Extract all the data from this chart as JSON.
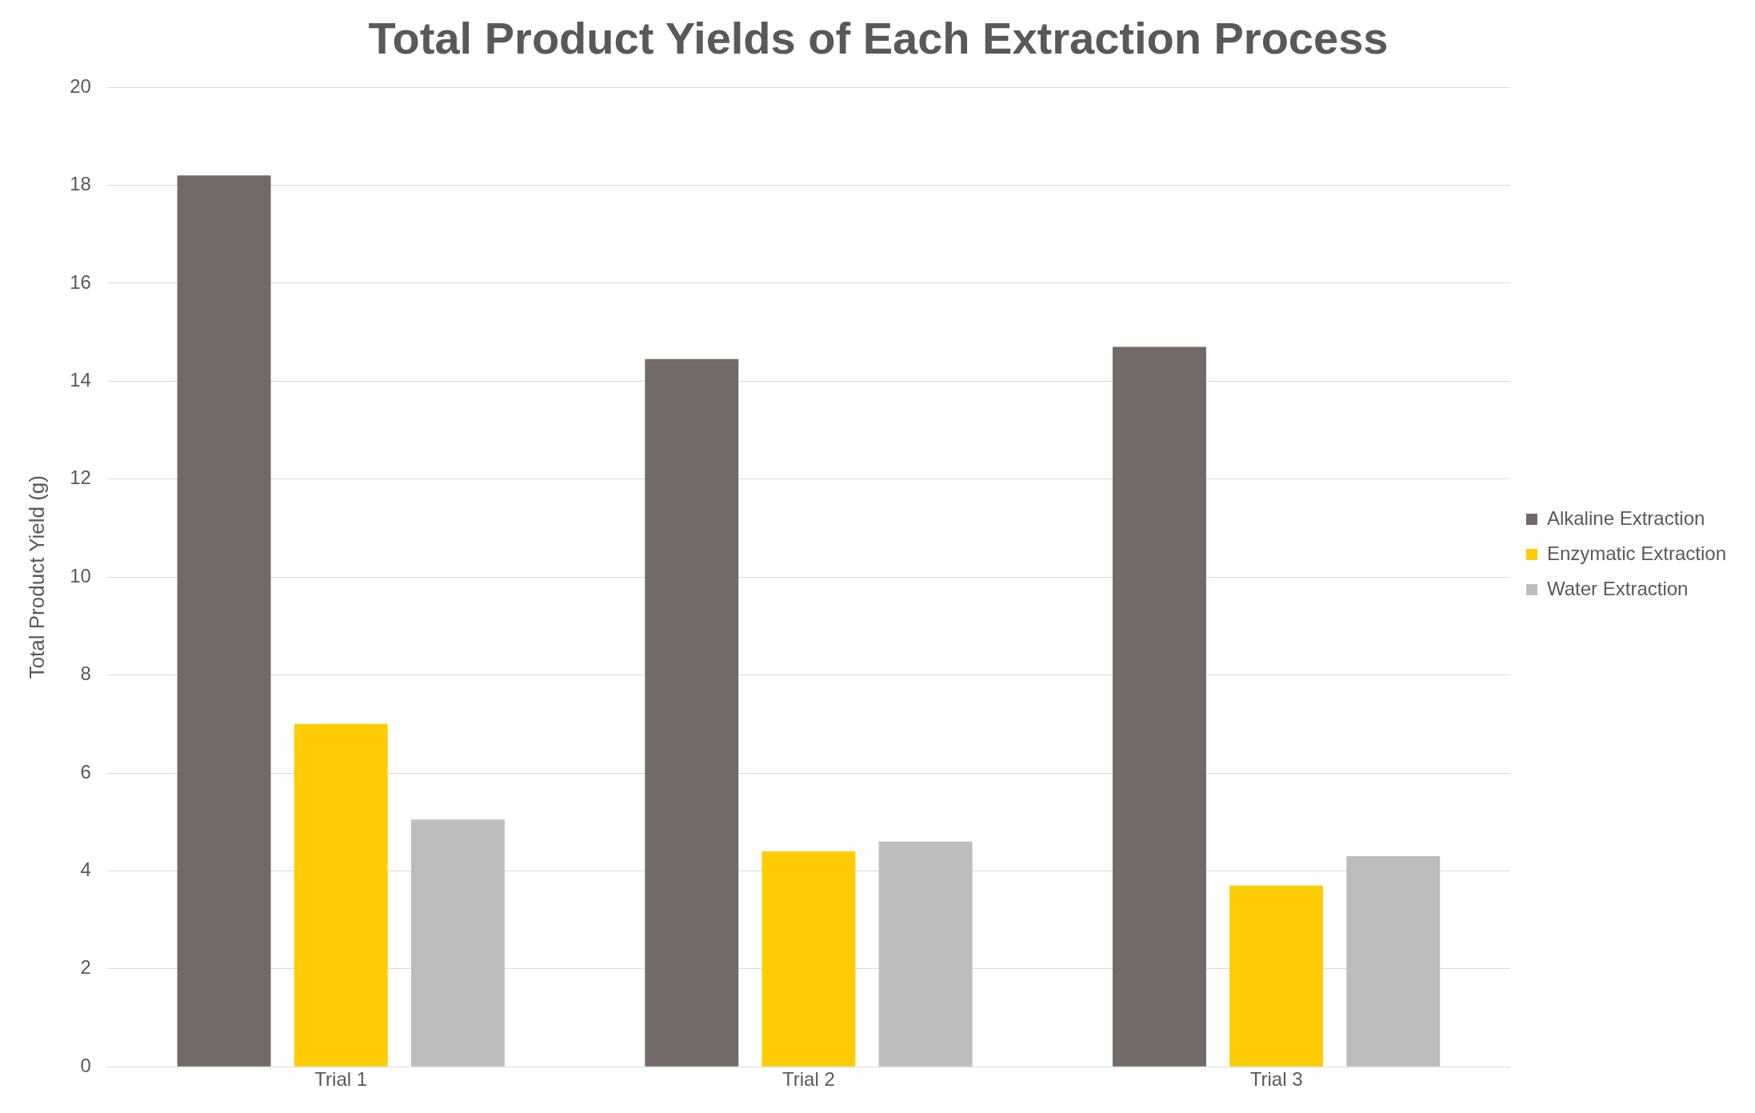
{
  "chart_data": {
    "type": "bar",
    "title": "Total Product Yields of Each Extraction Process",
    "ylabel": "Total Product Yield (g)",
    "categories": [
      "Trial 1",
      "Trial 2",
      "Trial 3"
    ],
    "series": [
      {
        "name": "Alkaline Extraction",
        "color": "#716a69",
        "values": [
          18.2,
          14.45,
          14.7
        ]
      },
      {
        "name": "Enzymatic Extraction",
        "color": "#ffcc05",
        "values": [
          7.0,
          4.4,
          3.7
        ]
      },
      {
        "name": "Water Extraction",
        "color": "#bdbdbd",
        "values": [
          5.05,
          4.6,
          4.3
        ]
      }
    ],
    "ylim": [
      0,
      20
    ],
    "yticks": [
      0,
      2,
      4,
      6,
      8,
      10,
      12,
      14,
      16,
      18,
      20
    ],
    "grid": "y",
    "legend": "right"
  }
}
